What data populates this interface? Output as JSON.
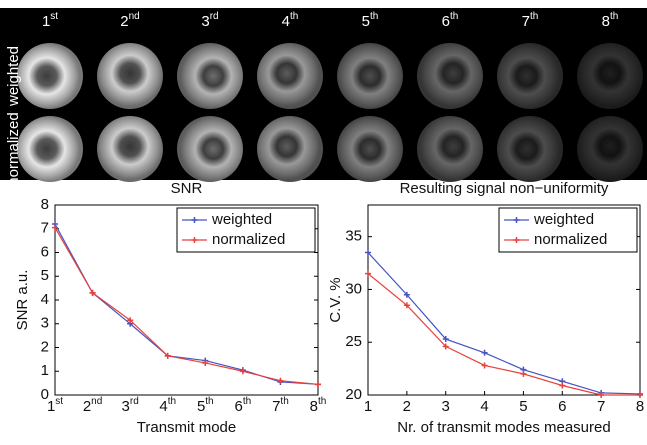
{
  "image_panel": {
    "columns": [
      "1st",
      "2nd",
      "3rd",
      "4th",
      "5th",
      "6th",
      "7th",
      "8th"
    ],
    "rows": [
      "weighted",
      "normalized"
    ]
  },
  "chart_data": [
    {
      "type": "line",
      "title": "SNR",
      "x_label": "Transmit mode",
      "y_label": "SNR a.u.",
      "categories": [
        "1st",
        "2nd",
        "3rd",
        "4th",
        "5th",
        "6th",
        "7th",
        "8th"
      ],
      "ylim": [
        0,
        8
      ],
      "yticks": [
        0,
        1,
        2,
        3,
        4,
        5,
        6,
        7,
        8
      ],
      "legend": "upper right",
      "series": [
        {
          "name": "weighted",
          "color": "#4455c0",
          "values": [
            7.2,
            4.3,
            3.0,
            1.65,
            1.45,
            1.05,
            0.55,
            0.45
          ]
        },
        {
          "name": "normalized",
          "color": "#e8413c",
          "values": [
            7.05,
            4.3,
            3.15,
            1.65,
            1.35,
            1.0,
            0.6,
            0.45
          ]
        }
      ]
    },
    {
      "type": "line",
      "title": "Resulting signal non−uniformity",
      "x_label": "Nr. of transmit modes measured",
      "y_label": "C.V. %",
      "x": [
        1,
        2,
        3,
        4,
        5,
        6,
        7,
        8
      ],
      "xlim": [
        1,
        8
      ],
      "xticks": [
        1,
        2,
        3,
        4,
        5,
        6,
        7,
        8
      ],
      "ylim": [
        20,
        38
      ],
      "yticks": [
        20,
        25,
        30,
        35
      ],
      "legend": "upper right",
      "series": [
        {
          "name": "weighted",
          "color": "#4455c0",
          "values": [
            33.5,
            29.5,
            25.3,
            24.0,
            22.4,
            21.3,
            20.2,
            20.1
          ]
        },
        {
          "name": "normalized",
          "color": "#e8413c",
          "values": [
            31.5,
            28.5,
            24.6,
            22.8,
            22.0,
            20.9,
            20.0,
            20.0
          ]
        }
      ]
    }
  ]
}
